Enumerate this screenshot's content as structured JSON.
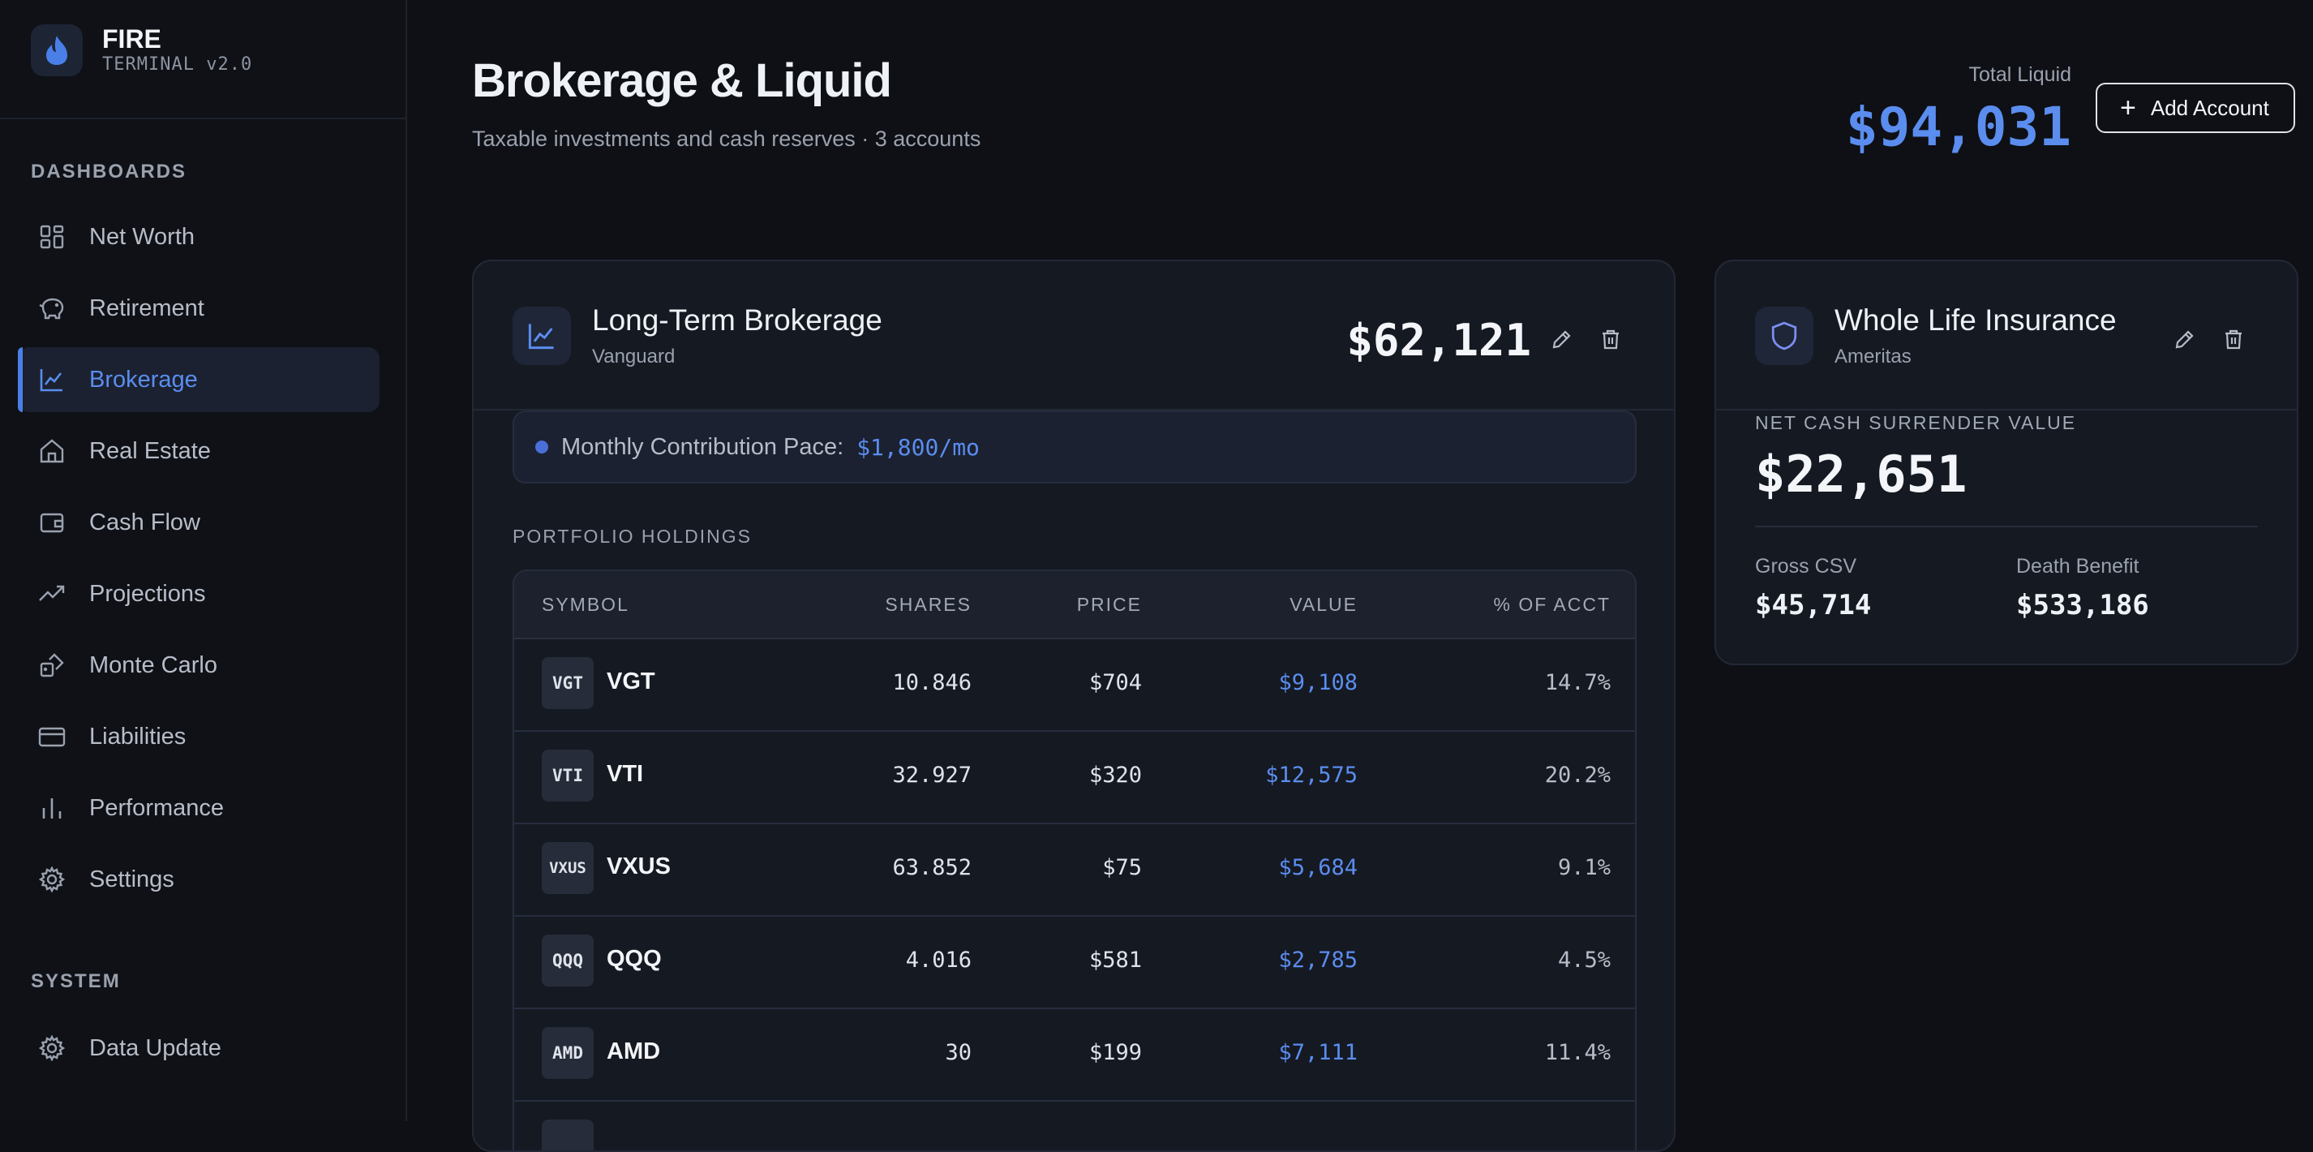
{
  "brand": {
    "name": "FIRE",
    "subtitle": "TERMINAL v2.0",
    "icon": "flame-icon"
  },
  "sidebar": {
    "dashboards_label": "DASHBOARDS",
    "system_label": "SYSTEM",
    "items": [
      {
        "label": "Net Worth",
        "icon": "grid-icon",
        "active": false
      },
      {
        "label": "Retirement",
        "icon": "piggy-bank-icon",
        "active": false
      },
      {
        "label": "Brokerage",
        "icon": "line-chart-icon",
        "active": true
      },
      {
        "label": "Real Estate",
        "icon": "home-icon",
        "active": false
      },
      {
        "label": "Cash Flow",
        "icon": "wallet-icon",
        "active": false
      },
      {
        "label": "Projections",
        "icon": "trending-up-icon",
        "active": false
      },
      {
        "label": "Monte Carlo",
        "icon": "dice-icon",
        "active": false
      },
      {
        "label": "Liabilities",
        "icon": "credit-card-icon",
        "active": false
      },
      {
        "label": "Performance",
        "icon": "bar-chart-icon",
        "active": false
      },
      {
        "label": "Settings",
        "icon": "gear-icon",
        "active": false
      }
    ],
    "system_items": [
      {
        "label": "Data Update",
        "icon": "gear-icon"
      }
    ]
  },
  "header": {
    "title": "Brokerage & Liquid",
    "subtitle": "Taxable investments and cash reserves · 3 accounts",
    "total_label": "Total Liquid",
    "total_value": "$94,031",
    "add_button": "Add Account"
  },
  "brokerage": {
    "name": "Long-Term Brokerage",
    "institution": "Vanguard",
    "value": "$62,121",
    "pace_label": "Monthly Contribution Pace:",
    "pace_value": "$1,800/mo",
    "holdings_label": "PORTFOLIO HOLDINGS",
    "columns": [
      "SYMBOL",
      "SHARES",
      "PRICE",
      "VALUE",
      "% OF ACCT"
    ],
    "holdings": [
      {
        "symbol": "VGT",
        "shares": "10.846",
        "price": "$704",
        "value": "$9,108",
        "pct": "14.7%"
      },
      {
        "symbol": "VTI",
        "shares": "32.927",
        "price": "$320",
        "value": "$12,575",
        "pct": "20.2%"
      },
      {
        "symbol": "VXUS",
        "shares": "63.852",
        "price": "$75",
        "value": "$5,684",
        "pct": "9.1%"
      },
      {
        "symbol": "QQQ",
        "shares": "4.016",
        "price": "$581",
        "value": "$2,785",
        "pct": "4.5%"
      },
      {
        "symbol": "AMD",
        "shares": "30",
        "price": "$199",
        "value": "$7,111",
        "pct": "11.4%"
      }
    ]
  },
  "insurance": {
    "name": "Whole Life Insurance",
    "institution": "Ameritas",
    "ncsv_label": "NET CASH SURRENDER VALUE",
    "ncsv_value": "$22,651",
    "gross_label": "Gross CSV",
    "gross_value": "$45,714",
    "death_label": "Death Benefit",
    "death_value": "$533,186"
  },
  "colors": {
    "accent": "#5b8def",
    "background": "#0e1015",
    "card": "#151922"
  }
}
